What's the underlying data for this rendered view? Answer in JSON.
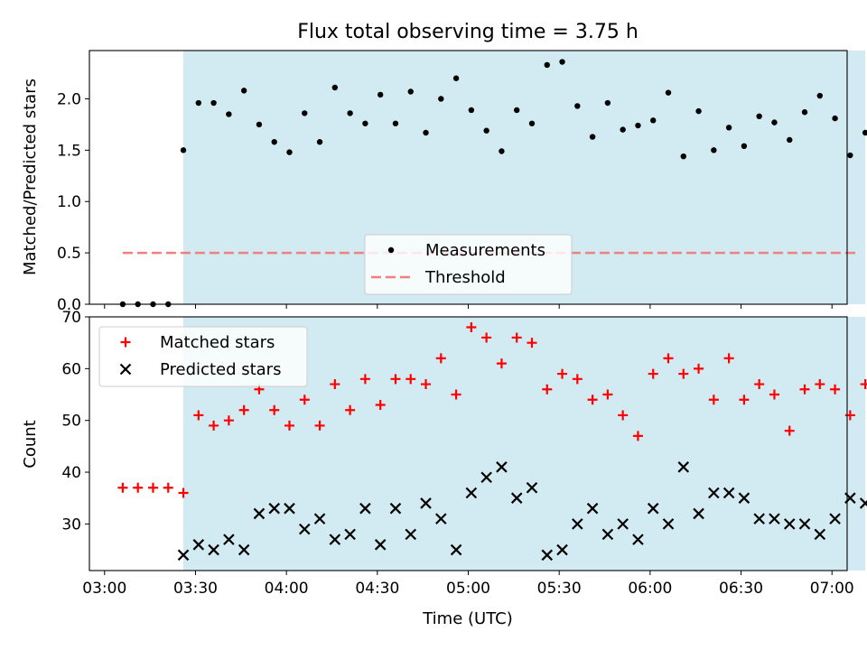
{
  "chart_data": {
    "title": "Flux total observing time = 3.75 h",
    "xlabel": "Time (UTC)",
    "x_ticks": [
      "03:00",
      "03:30",
      "04:00",
      "04:30",
      "05:00",
      "05:30",
      "06:00",
      "06:30",
      "07:00"
    ],
    "x_range_min": [
      175,
      425
    ],
    "observing_window_min": [
      206,
      431
    ],
    "shade_color": "#add8e6",
    "panels": [
      {
        "type": "scatter",
        "ylabel": "Matched/Predicted stars",
        "ylim": [
          0,
          2.47
        ],
        "yticks": [
          "0.0",
          "0.5",
          "1.0",
          "1.5",
          "2.0"
        ],
        "legend": "lower center",
        "series": [
          {
            "name": "Measurements",
            "marker": "dot",
            "color": "#000000",
            "x_min": [
              186,
              191,
              196,
              201,
              206,
              211,
              216,
              221,
              226,
              231,
              236,
              241,
              246,
              251,
              256,
              261,
              266,
              271,
              276,
              281,
              286,
              291,
              296,
              301,
              306,
              311,
              316,
              321,
              326,
              331,
              336,
              341,
              346,
              351,
              356,
              361,
              366,
              371,
              376,
              381,
              386,
              391,
              396,
              401,
              406,
              411,
              416,
              421,
              426,
              431
            ],
            "y": [
              0,
              0,
              0,
              0,
              1.5,
              1.96,
              1.96,
              1.85,
              2.08,
              1.75,
              1.58,
              1.48,
              1.86,
              1.58,
              2.11,
              1.86,
              1.76,
              2.04,
              1.76,
              2.07,
              1.67,
              2.0,
              2.2,
              1.89,
              1.69,
              1.49,
              1.89,
              1.76,
              2.33,
              2.36,
              1.93,
              1.63,
              1.96,
              1.7,
              1.74,
              1.79,
              2.06,
              1.44,
              1.88,
              1.5,
              1.72,
              1.54,
              1.83,
              1.77,
              1.6,
              1.87,
              2.03,
              1.81,
              1.45,
              1.67
            ]
          },
          {
            "name": "Threshold",
            "marker": "dashed-line",
            "color": "#f08080",
            "x_min": [
              186,
              429
            ],
            "y": [
              0.5,
              0.5
            ]
          }
        ]
      },
      {
        "type": "scatter",
        "ylabel": "Count",
        "ylim": [
          21,
          70
        ],
        "yticks": [
          "30",
          "40",
          "50",
          "60",
          "70"
        ],
        "legend": "upper left",
        "series": [
          {
            "name": "Matched stars",
            "marker": "plus",
            "color": "#ff0000",
            "x_min": [
              186,
              191,
              196,
              201,
              206,
              211,
              216,
              221,
              226,
              231,
              236,
              241,
              246,
              251,
              256,
              261,
              266,
              271,
              276,
              281,
              286,
              291,
              296,
              301,
              306,
              311,
              316,
              321,
              326,
              331,
              336,
              341,
              346,
              351,
              356,
              361,
              366,
              371,
              376,
              381,
              386,
              391,
              396,
              401,
              406,
              411,
              416,
              421,
              426,
              431
            ],
            "y": [
              37,
              37,
              37,
              37,
              36,
              51,
              49,
              50,
              52,
              56,
              52,
              49,
              54,
              49,
              57,
              52,
              58,
              53,
              58,
              58,
              57,
              62,
              55,
              68,
              66,
              61,
              66,
              65,
              56,
              59,
              58,
              54,
              55,
              51,
              47,
              59,
              62,
              59,
              60,
              54,
              62,
              54,
              57,
              55,
              48,
              56,
              57,
              56,
              51,
              57
            ]
          },
          {
            "name": "Predicted stars",
            "marker": "x",
            "color": "#000000",
            "x_min": [
              206,
              211,
              216,
              221,
              226,
              231,
              236,
              241,
              246,
              251,
              256,
              261,
              266,
              271,
              276,
              281,
              286,
              291,
              296,
              301,
              306,
              311,
              316,
              321,
              326,
              331,
              336,
              341,
              346,
              351,
              356,
              361,
              366,
              371,
              376,
              381,
              386,
              391,
              396,
              401,
              406,
              411,
              416,
              421,
              426,
              431
            ],
            "y": [
              24,
              26,
              25,
              27,
              25,
              32,
              33,
              33,
              29,
              31,
              27,
              28,
              33,
              26,
              33,
              28,
              34,
              31,
              25,
              36,
              39,
              41,
              35,
              37,
              24,
              25,
              30,
              33,
              28,
              30,
              27,
              33,
              30,
              41,
              32,
              36,
              36,
              35,
              31,
              31,
              30,
              30,
              28,
              31,
              35,
              34
            ]
          }
        ]
      }
    ]
  }
}
